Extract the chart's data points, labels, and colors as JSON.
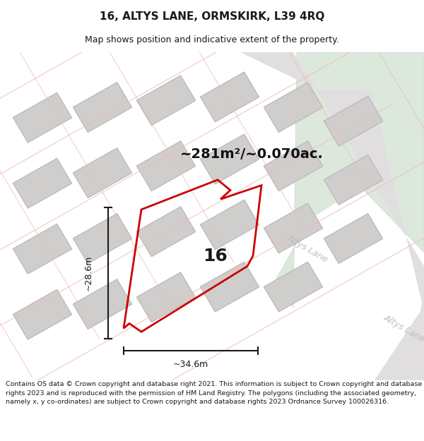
{
  "title": "16, ALTYS LANE, ORMSKIRK, L39 4RQ",
  "subtitle": "Map shows position and indicative extent of the property.",
  "footer": "Contains OS data © Crown copyright and database right 2021. This information is subject to Crown copyright and database rights 2023 and is reproduced with the permission of HM Land Registry. The polygons (including the associated geometry, namely x, y co-ordinates) are subject to Crown copyright and database rights 2023 Ordnance Survey 100026316.",
  "area_text": "~281m²/~0.070ac.",
  "property_number": "16",
  "dim_width": "~34.6m",
  "dim_height": "~28.6m",
  "road_label_1": "Altys Lane",
  "road_label_2": "Altys Lane",
  "title_fontsize": 11,
  "subtitle_fontsize": 9,
  "footer_fontsize": 6.8,
  "area_fontsize": 14,
  "number_fontsize": 18,
  "dim_fontsize": 9,
  "road_fontsize": 9,
  "map_bg": "#f2f0f0",
  "green_color": "#dce8dc",
  "road_fill": "#e0dede",
  "building_fill": "#d0cecc",
  "building_edge": "#b8b6b4",
  "pink_road": "#f0b8b8",
  "property_edge": "#cc0000",
  "dim_color": "#1a1a1a",
  "text_color": "#1a1a1a",
  "road_text_color": "#c0bebe"
}
